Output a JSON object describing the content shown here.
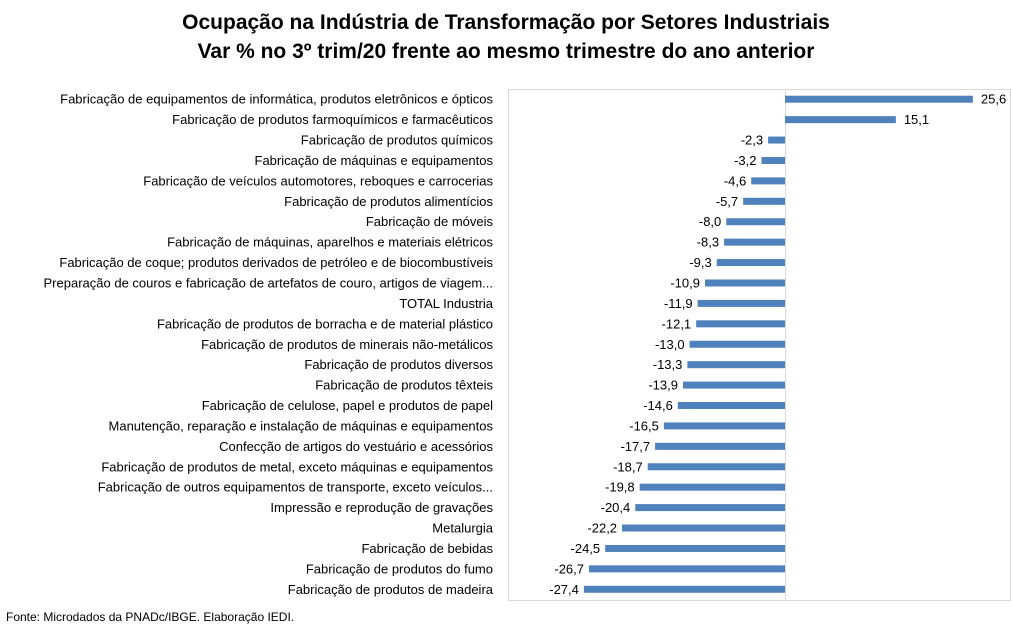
{
  "chart_data": {
    "type": "bar",
    "orientation": "horizontal",
    "title": "Ocupação na Indústria de Transformação por Setores Industriais",
    "subtitle": "Var % no 3º trim/20 frente ao mesmo trimestre do ano anterior",
    "xlabel": "",
    "ylabel": "",
    "grid": false,
    "legend": "none",
    "bar_color": "#4f81bd",
    "categories": [
      "Fabricação de equipamentos de informática, produtos eletrônicos e ópticos",
      "Fabricação de produtos farmoquímicos e farmacêuticos",
      "Fabricação de produtos químicos",
      "Fabricação de máquinas e equipamentos",
      "Fabricação de veículos automotores, reboques e carrocerias",
      "Fabricação de produtos alimentícios",
      "Fabricação de móveis",
      "Fabricação de máquinas, aparelhos e materiais elétricos",
      "Fabricação de coque; produtos derivados de petróleo e de biocombustíveis",
      "Preparação de couros e fabricação de artefatos de couro, artigos de viagem...",
      "TOTAL Industria",
      "Fabricação de produtos de borracha e de material plástico",
      "Fabricação de produtos de minerais não-metálicos",
      "Fabricação de produtos diversos",
      "Fabricação de produtos têxteis",
      "Fabricação de celulose, papel e produtos de papel",
      "Manutenção, reparação e instalação de máquinas e equipamentos",
      "Confecção de artigos do vestuário e acessórios",
      "Fabricação de produtos de metal, exceto máquinas e equipamentos",
      "Fabricação de outros equipamentos de transporte, exceto veículos...",
      "Impressão e reprodução de gravações",
      "Metalurgia",
      "Fabricação de bebidas",
      "Fabricação de produtos do fumo",
      "Fabricação de produtos de madeira"
    ],
    "values": [
      25.6,
      15.1,
      -2.3,
      -3.2,
      -4.6,
      -5.7,
      -8.0,
      -8.3,
      -9.3,
      -10.9,
      -11.9,
      -12.1,
      -13.0,
      -13.3,
      -13.9,
      -14.6,
      -16.5,
      -17.7,
      -18.7,
      -19.8,
      -20.4,
      -22.2,
      -24.5,
      -26.7,
      -27.4
    ],
    "value_labels": [
      "25,6",
      "15,1",
      "-2,3",
      "-3,2",
      "-4,6",
      "-5,7",
      "-8,0",
      "-8,3",
      "-9,3",
      "-10,9",
      "-11,9",
      "-12,1",
      "-13,0",
      "-13,3",
      "-13,9",
      "-14,6",
      "-16,5",
      "-17,7",
      "-18,7",
      "-19,8",
      "-20,4",
      "-22,2",
      "-24,5",
      "-26,7",
      "-27,4"
    ],
    "xlim": [
      -28,
      30
    ]
  },
  "footer": {
    "source": "Fonte: Microdados da PNADc/IBGE. Elaboração IEDI."
  }
}
